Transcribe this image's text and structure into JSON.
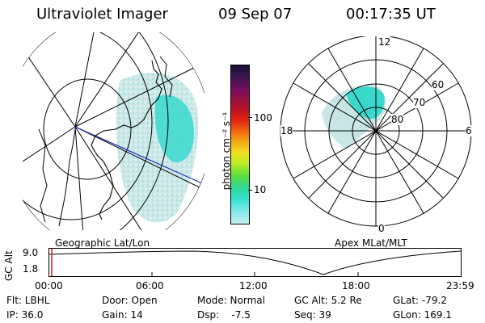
{
  "header": {
    "title": "Ultraviolet Imager",
    "date": "09 Sep 07",
    "time": "00:17:35 UT"
  },
  "left_panel": {
    "caption": "Geographic Lat/Lon"
  },
  "right_panel": {
    "caption": "Apex MLat/MLT",
    "mlt_labels": {
      "top": "12",
      "left": "18",
      "right": "6",
      "bottom": "0"
    },
    "lat_labels": [
      "60",
      "70",
      "80"
    ]
  },
  "colorbar": {
    "label": "photon cm⁻² s⁻¹",
    "ticks": [
      "100",
      "10"
    ],
    "colors_top_to_bottom": [
      "#1a1030",
      "#3b1450",
      "#7a1060",
      "#b0102a",
      "#e02010",
      "#f26a10",
      "#f2a818",
      "#f2e020",
      "#b8ec28",
      "#58dc40",
      "#30d890",
      "#30e0d0",
      "#80e8e8",
      "#c8eeee"
    ]
  },
  "timeline": {
    "axis_label": "GC Alt",
    "y_ticks": [
      "9.0",
      "1.8"
    ],
    "x_ticks": [
      "00:00",
      "06:00",
      "12:00",
      "18:00",
      "23:59"
    ],
    "marker_time": "00:17:35",
    "marker_color": "#d02020"
  },
  "status": {
    "flt": "Flt: LBHL",
    "ip": "IP: 36.0",
    "door": "Door: Open",
    "gain": "Gain: 14",
    "mode": "Mode: Normal",
    "dsp": "Dsp:    -7.5",
    "gc_alt": "GC Alt: 5.2 Re",
    "seq": "Seq: 39",
    "glat": "GLat: -79.2",
    "glon": "GLon: 169.1"
  }
}
